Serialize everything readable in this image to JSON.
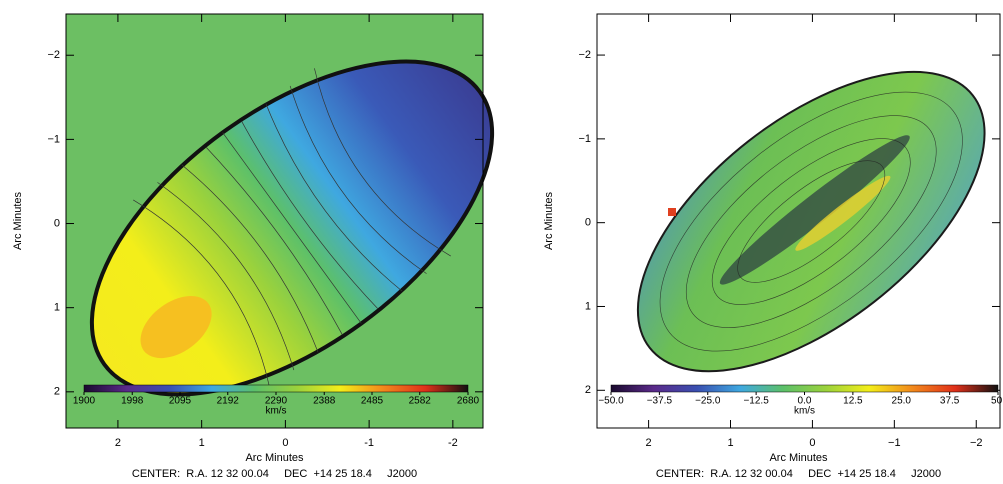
{
  "chart_data": [
    {
      "type": "velocity-map",
      "xlabel": "Arc Minutes",
      "ylabel": "Arc Minutes",
      "xlim": [
        2.62,
        -2.36
      ],
      "ylim": [
        2.43,
        -2.49
      ],
      "xticks": [
        2,
        1,
        0,
        -1,
        -2
      ],
      "yticks": [
        {
          "value": -2,
          "label": "−2"
        },
        {
          "value": -1,
          "label": "−1"
        },
        0,
        1,
        2
      ],
      "colorbar": {
        "label": "km/s",
        "lim": [
          1900,
          2680
        ],
        "ticks": [
          1900,
          1998,
          2095,
          2192,
          2290,
          2388,
          2485,
          2582,
          2680
        ],
        "colors": [
          "#1a0a2e",
          "#5a2a8a",
          "#3a4fb0",
          "#3fa8e0",
          "#5cc06a",
          "#9bd23c",
          "#f3ee1a",
          "#f28a1c",
          "#e0301a",
          "#111111"
        ]
      },
      "footer": "CENTER:  R.A. 12 32 00.04     DEC  +14 25 18.4     J2000"
    },
    {
      "type": "velocity-map",
      "xlabel": "Arc Minutes",
      "ylabel": "Arc Minutes",
      "xlim": [
        2.63,
        -2.29
      ],
      "ylim": [
        2.45,
        -2.49
      ],
      "xticks": [
        2,
        1,
        0,
        {
          "value": -1,
          "label": "−1"
        },
        {
          "value": -2,
          "label": "−2"
        }
      ],
      "yticks": [
        {
          "value": -2,
          "label": "−2"
        },
        {
          "value": -1,
          "label": "−1"
        },
        0,
        1,
        2
      ],
      "colorbar": {
        "label": "km/s",
        "lim": [
          -50,
          50
        ],
        "ticks": [
          {
            "value": -50,
            "label": "−50.0"
          },
          {
            "value": -37.5,
            "label": "−37.5"
          },
          {
            "value": -25,
            "label": "−25.0"
          },
          {
            "value": -12.5,
            "label": "−12.5"
          },
          {
            "value": 0,
            "label": "0.0"
          },
          {
            "value": 12.5,
            "label": "12.5"
          },
          {
            "value": 25,
            "label": "25.0"
          },
          {
            "value": 37.5,
            "label": "37.5"
          },
          {
            "value": 50,
            "label": "50."
          }
        ],
        "colors": [
          "#1a0a2e",
          "#5a2a8a",
          "#3a4fb0",
          "#3fa8e0",
          "#5cc06a",
          "#9bd23c",
          "#f3ee1a",
          "#f28a1c",
          "#e0301a",
          "#111111"
        ]
      },
      "footer": "CENTER:  R.A. 12 32 00.04     DEC  +14 25 18.4     J2000"
    }
  ]
}
